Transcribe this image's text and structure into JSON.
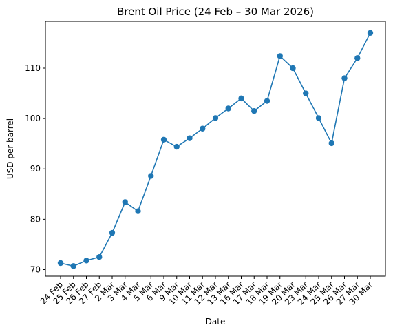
{
  "chart_data": {
    "type": "line",
    "title": "Brent Oil Price (24 Feb – 30 Mar 2026)",
    "xlabel": "Date",
    "ylabel": "USD per barrel",
    "categories": [
      "24 Feb",
      "25 Feb",
      "26 Feb",
      "27 Feb",
      "2 Mar",
      "3 Mar",
      "4 Mar",
      "5 Mar",
      "6 Mar",
      "9 Mar",
      "10 Mar",
      "11 Mar",
      "12 Mar",
      "13 Mar",
      "16 Mar",
      "17 Mar",
      "18 Mar",
      "19 Mar",
      "20 Mar",
      "23 Mar",
      "24 Mar",
      "25 Mar",
      "26 Mar",
      "27 Mar",
      "30 Mar"
    ],
    "series": [
      {
        "values": [
          71.3,
          70.7,
          71.8,
          72.5,
          77.3,
          83.4,
          81.6,
          88.6,
          95.8,
          94.4,
          96.1,
          98.0,
          100.1,
          102.0,
          104.0,
          101.5,
          103.5,
          112.4,
          110.0,
          105.0,
          100.1,
          95.1,
          108.0,
          112.0,
          117.0
        ],
        "color": "#1f77b4"
      }
    ],
    "ylim": [
      68.7,
      119.3
    ],
    "yticks": [
      70,
      80,
      90,
      100,
      110
    ],
    "xtick_rotation": 45,
    "grid": false,
    "legend": "none"
  }
}
